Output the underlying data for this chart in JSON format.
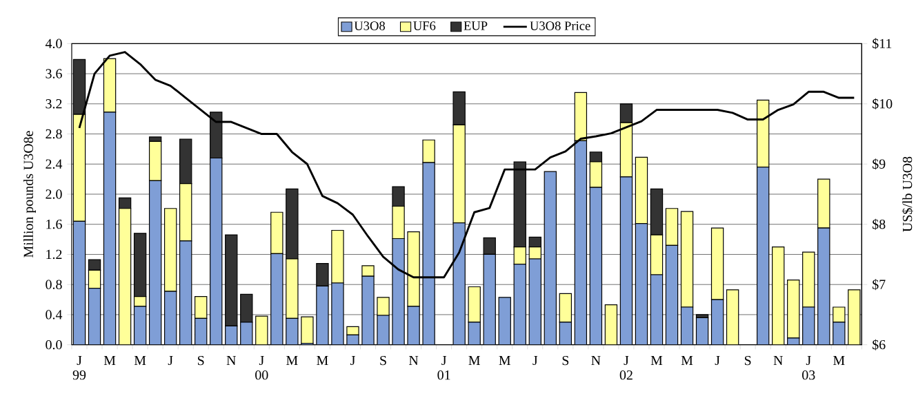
{
  "chart_data": {
    "type": "bar",
    "stacked": true,
    "categories": [
      "J 99",
      null,
      "M",
      null,
      "M",
      null,
      "J",
      null,
      "S",
      null,
      "N",
      null,
      "J 00",
      null,
      "M",
      null,
      "M",
      null,
      "J",
      null,
      "S",
      null,
      "N",
      null,
      "J 01",
      null,
      "M",
      null,
      "M",
      null,
      "J",
      null,
      "S",
      null,
      "N",
      null,
      "J 02",
      null,
      "M",
      null,
      "M",
      null,
      "J",
      null,
      "S",
      null,
      "N",
      null,
      "J 03",
      null,
      "M",
      null
    ],
    "series": [
      {
        "name": "U3O8",
        "color": "#7f9ed6",
        "values": [
          1.64,
          0.75,
          3.09,
          0,
          0.51,
          2.18,
          0.71,
          1.38,
          0.35,
          2.48,
          0.25,
          0.3,
          0,
          1.21,
          0.35,
          0.02,
          0.78,
          0.82,
          0.13,
          0.91,
          0.39,
          1.41,
          0.51,
          2.42,
          0,
          1.62,
          0.3,
          1.2,
          0.63,
          1.07,
          1.14,
          2.3,
          0.3,
          2.71,
          2.09,
          0,
          2.23,
          1.61,
          0.93,
          1.32,
          0.5,
          0.36,
          0.6,
          0,
          0,
          2.36,
          0,
          0.09,
          0.5,
          1.55,
          0.3,
          0
        ]
      },
      {
        "name": "UF6",
        "color": "#ffff99",
        "values": [
          1.42,
          0.24,
          0.71,
          1.81,
          0.13,
          0.52,
          1.1,
          0.76,
          0.29,
          0,
          0,
          0,
          0.38,
          0.55,
          0.79,
          0.35,
          0,
          0.7,
          0.11,
          0.14,
          0.24,
          0.43,
          0.99,
          0.3,
          0,
          1.3,
          0.47,
          0,
          0,
          0.23,
          0.16,
          0,
          0.38,
          0.64,
          0.34,
          0.53,
          0.72,
          0.88,
          0.53,
          0.49,
          1.27,
          0,
          0.95,
          0.73,
          0,
          0.89,
          1.3,
          0.77,
          0.73,
          0.65,
          0.2,
          0.73
        ]
      },
      {
        "name": "EUP",
        "color": "#333333",
        "values": [
          0.73,
          0.14,
          0,
          0.14,
          0.84,
          0.06,
          0,
          0.59,
          0,
          0.61,
          1.21,
          0.37,
          0,
          0,
          0.93,
          0,
          0.3,
          0,
          0,
          0,
          0,
          0.26,
          0,
          0,
          0,
          0.44,
          0,
          0.22,
          0,
          1.13,
          0.13,
          0,
          0,
          0,
          0.13,
          0,
          0.25,
          0,
          0.61,
          0,
          0,
          0.04,
          0,
          0,
          0,
          0,
          0,
          0,
          0,
          0,
          0,
          0
        ]
      },
      {
        "name": "U3O8 Price",
        "type": "line",
        "axis": "y2",
        "color": "#000000",
        "values": [
          9.6,
          10.5,
          10.8,
          10.86,
          10.66,
          10.4,
          10.3,
          10.1,
          9.9,
          9.7,
          9.7,
          9.6,
          9.5,
          9.5,
          9.2,
          9.0,
          8.47,
          8.35,
          8.16,
          7.8,
          7.46,
          7.25,
          7.12,
          7.12,
          7.12,
          7.53,
          8.2,
          8.27,
          8.91,
          8.91,
          8.91,
          9.11,
          9.21,
          9.42,
          9.46,
          9.51,
          9.61,
          9.71,
          9.9,
          9.9,
          9.9,
          9.9,
          9.9,
          9.85,
          9.74,
          9.74,
          9.9,
          9.99,
          10.2,
          10.2,
          10.1,
          10.1
        ]
      }
    ],
    "ylim": [
      0,
      4
    ],
    "yticks": [
      {
        "value": 0,
        "label": "0.0"
      },
      {
        "value": 0.4,
        "label": "0.4"
      },
      {
        "value": 0.8,
        "label": "0.8"
      },
      {
        "value": 1.2,
        "label": "1.2"
      },
      {
        "value": 1.6,
        "label": "1.6"
      },
      {
        "value": 2,
        "label": "2.0"
      },
      {
        "value": 2.4,
        "label": "2.4"
      },
      {
        "value": 2.8,
        "label": "2.8"
      },
      {
        "value": 3.2,
        "label": "3.2"
      },
      {
        "value": 3.6,
        "label": "3.6"
      },
      {
        "value": 4,
        "label": "4.0"
      }
    ],
    "y2lim": [
      6,
      11
    ],
    "y2ticks": [
      {
        "value": 6,
        "label": "$6"
      },
      {
        "value": 7,
        "label": "$7"
      },
      {
        "value": 8,
        "label": "$8"
      },
      {
        "value": 9,
        "label": "$9"
      },
      {
        "value": 10,
        "label": "$10"
      },
      {
        "value": 11,
        "label": "$11"
      }
    ],
    "ylabel": "Million pounds U3O8e",
    "y2label": "US$/lb U3O8",
    "grid": "y",
    "legend": "top"
  }
}
